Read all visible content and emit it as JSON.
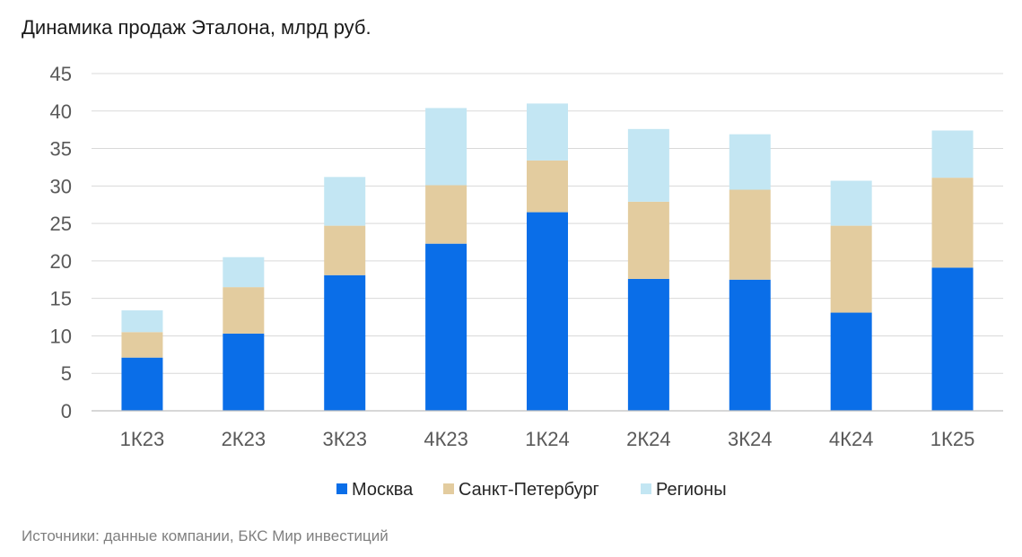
{
  "title": "Динамика продаж Эталона, млрд руб.",
  "source": "Источники: данные компании, БКС Мир инвестиций",
  "chart_data": {
    "type": "bar",
    "stacked": true,
    "categories": [
      "1К23",
      "2К23",
      "3К23",
      "4К23",
      "1К24",
      "2К24",
      "3К24",
      "4К24",
      "1К25"
    ],
    "series": [
      {
        "name": "Москва",
        "color": "#0a6ee8",
        "values": [
          7.1,
          10.3,
          18.1,
          22.3,
          26.5,
          17.6,
          17.5,
          13.1,
          19.1
        ]
      },
      {
        "name": "Санкт-Петербург",
        "color": "#e3cc9f",
        "values": [
          3.4,
          6.2,
          6.6,
          7.8,
          6.9,
          10.3,
          12.0,
          11.6,
          12.0
        ]
      },
      {
        "name": "Регионы",
        "color": "#c3e6f3",
        "values": [
          2.9,
          4.0,
          6.5,
          10.3,
          7.6,
          9.7,
          7.4,
          6.0,
          6.3
        ]
      }
    ],
    "y_ticks": [
      "0",
      "5",
      "10",
      "15",
      "20",
      "25",
      "30",
      "35",
      "40",
      "45"
    ],
    "ylim": [
      0,
      45
    ],
    "grid": true,
    "legend_position": "bottom"
  }
}
